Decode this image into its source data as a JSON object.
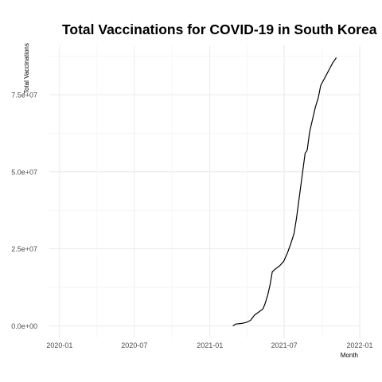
{
  "chart_data": {
    "type": "line",
    "title": "Total Vaccinations for COVID-19 in South Korea",
    "xlabel": "Month",
    "ylabel": "Total Vaccinations",
    "x_ticks": [
      "2020-01",
      "2020-07",
      "2021-01",
      "2021-07",
      "2022-01"
    ],
    "y_ticks": [
      "0.0e+00",
      "2.5e+07",
      "5.0e+07",
      "7.5e+07"
    ],
    "y_tick_values": [
      0,
      25000000,
      50000000,
      75000000
    ],
    "xlim": [
      "2019-12-07",
      "2022-01-01"
    ],
    "ylim": [
      -4000000,
      91000000
    ],
    "grid": true,
    "series": [
      {
        "color": "#000000",
        "points": [
          [
            "2021-02-26",
            0
          ],
          [
            "2021-03-05",
            600000
          ],
          [
            "2021-03-20",
            800000
          ],
          [
            "2021-04-01",
            1200000
          ],
          [
            "2021-04-10",
            1800000
          ],
          [
            "2021-04-20",
            3500000
          ],
          [
            "2021-04-30",
            4500000
          ],
          [
            "2021-05-10",
            5500000
          ],
          [
            "2021-05-15",
            7000000
          ],
          [
            "2021-05-22",
            10000000
          ],
          [
            "2021-05-28",
            13500000
          ],
          [
            "2021-06-02",
            17500000
          ],
          [
            "2021-06-10",
            18500000
          ],
          [
            "2021-06-20",
            19500000
          ],
          [
            "2021-06-30",
            21000000
          ],
          [
            "2021-07-10",
            24000000
          ],
          [
            "2021-07-18",
            27000000
          ],
          [
            "2021-07-25",
            30000000
          ],
          [
            "2021-07-31",
            35000000
          ],
          [
            "2021-08-07",
            42000000
          ],
          [
            "2021-08-14",
            49000000
          ],
          [
            "2021-08-21",
            56000000
          ],
          [
            "2021-08-26",
            57000000
          ],
          [
            "2021-09-01",
            63000000
          ],
          [
            "2021-09-08",
            67000000
          ],
          [
            "2021-09-15",
            71000000
          ],
          [
            "2021-09-22",
            74000000
          ],
          [
            "2021-09-28",
            78000000
          ],
          [
            "2021-10-08",
            80500000
          ],
          [
            "2021-10-18",
            83000000
          ],
          [
            "2021-10-28",
            85500000
          ],
          [
            "2021-11-05",
            87000000
          ]
        ]
      }
    ]
  }
}
